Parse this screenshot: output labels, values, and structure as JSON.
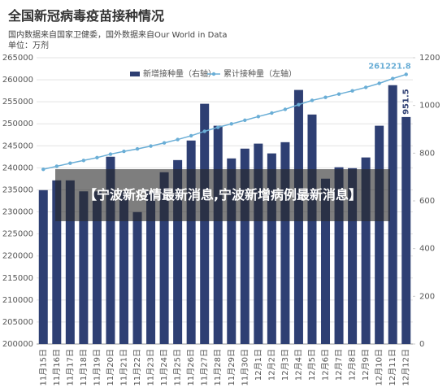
{
  "chart_data": {
    "type": "bar-line",
    "title": "全国新冠病毒疫苗接种情况",
    "subtitle": [
      "国内数据来自国家卫健委，国外数据来自Our World in Data",
      "单位：万剂"
    ],
    "categories": [
      "11月15日",
      "11月16日",
      "11月17日",
      "11月18日",
      "11月19日",
      "11月20日",
      "11月21日",
      "11月22日",
      "11月23日",
      "11月24日",
      "11月25日",
      "11月26日",
      "11月27日",
      "11月28日",
      "11月29日",
      "11月30日",
      "12月1日",
      "12月2日",
      "12月3日",
      "12月4日",
      "12月5日",
      "12月6日",
      "12月7日",
      "12月8日",
      "12月9日",
      "12月10日",
      "12月11日",
      "12月12日"
    ],
    "series": [
      {
        "name": "新增接种量（右轴）",
        "color": "#2e3f73",
        "axis": "y2",
        "type": "bar",
        "values": [
          645,
          686,
          686,
          640,
          640,
          785,
          640,
          553,
          640,
          720,
          771,
          853,
          1007,
          915,
          778,
          819,
          840,
          799,
          846,
          1065,
          962,
          693,
          741,
          737,
          782,
          915,
          1085,
          951.5
        ]
      },
      {
        "name": "累计接种量（左轴）",
        "color": "#6aaed6",
        "type": "line",
        "values": [
          239672,
          240358,
          241044,
          241684,
          242324,
          243109,
          243749,
          244302,
          244942,
          245662,
          246433,
          247286,
          248293,
          249208,
          249986,
          250805,
          251645,
          252444,
          253290,
          254355,
          255317,
          256010,
          256751,
          257488,
          258270,
          259185,
          260270,
          261221.8
        ]
      }
    ],
    "ylim": [
      200000,
      265000
    ],
    "yticks": [
      200000,
      205000,
      210000,
      215000,
      220000,
      225000,
      230000,
      235000,
      240000,
      245000,
      250000,
      255000,
      260000,
      265000
    ],
    "y2lim": [
      0,
      1200
    ],
    "y2ticks": [
      0,
      200,
      400,
      600,
      800,
      1000,
      1200
    ],
    "grid": true
  },
  "banner": "【宁波新疫情最新消息,宁波新增病例最新消息】"
}
